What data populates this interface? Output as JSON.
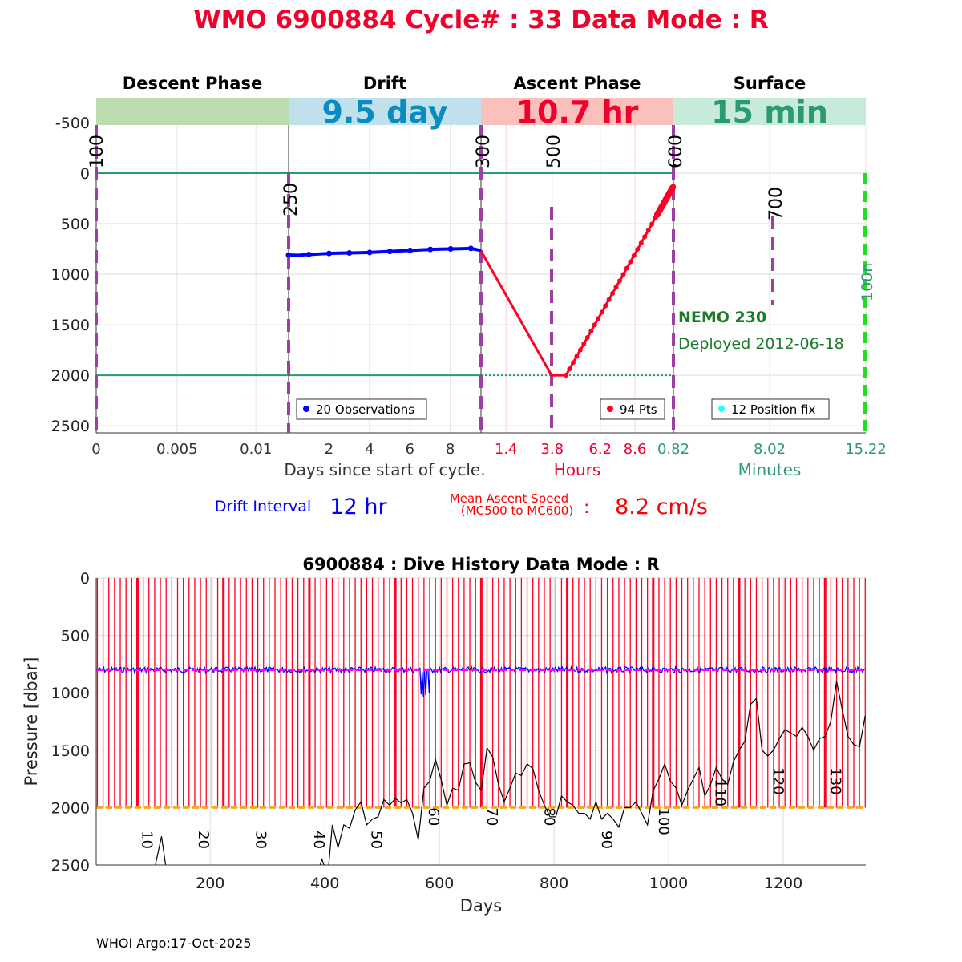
{
  "title": "WMO 6900884   Cycle# : 33   Data Mode : R",
  "chart_data": [
    {
      "type": "line",
      "phases": [
        {
          "name": "Descent Phase",
          "value": "",
          "color": "#bcdcae"
        },
        {
          "name": "Drift",
          "value": "9.5 day",
          "color": "#bfe1ec",
          "value_color": "#0a8cc0"
        },
        {
          "name": "Ascent Phase",
          "value": "10.7 hr",
          "color": "#fbbfbc",
          "value_color": "#f0002a"
        },
        {
          "name": "Surface",
          "value": "15 min",
          "color": "#c8ead9",
          "value_color": "#2a9a70"
        }
      ],
      "ylim": [
        -745,
        2570
      ],
      "yticks": [
        -500,
        0,
        500,
        1000,
        1500,
        2000,
        2500
      ],
      "ytick_labels": [
        "-500",
        "0",
        "500",
        "1000",
        "1500",
        "2000",
        "2500"
      ],
      "panel_xticks": [
        {
          "labels": [
            "0",
            "0.005",
            "0.01"
          ],
          "pos": [
            0,
            0.42,
            0.83
          ],
          "color": "#333"
        },
        {
          "labels": [
            "2",
            "4",
            "6",
            "8"
          ],
          "pos": [
            0.21,
            0.42,
            0.63,
            0.84
          ],
          "color": "#333"
        },
        {
          "labels": [
            "1.4",
            "3.8",
            "6.2",
            "8.6"
          ],
          "pos": [
            0.13,
            0.37,
            0.62,
            0.8
          ],
          "color": "#f0002a"
        },
        {
          "labels": [
            "0.82",
            "8.02",
            "15.22"
          ],
          "pos": [
            0,
            0.5,
            1
          ],
          "color": "#2a9a70"
        }
      ],
      "xlabels": [
        {
          "text": "Days since start of cycle.",
          "color": "#333"
        },
        {
          "text": "Hours",
          "color": "#f0002a"
        },
        {
          "text": "Minutes",
          "color": "#2a9a70"
        }
      ],
      "mission_codes": [
        "100",
        "250",
        "300",
        "500",
        "600",
        "700",
        "100n"
      ],
      "drift": {
        "name": "20 Observations",
        "pressure": [
          810,
          812,
          805,
          800,
          795,
          792,
          790,
          788,
          785,
          780,
          775,
          770,
          765,
          760,
          755,
          752,
          750,
          748,
          745,
          765
        ]
      },
      "ascent": {
        "name": "94 Pts",
        "descent_start": 770,
        "park_bottom": 2000,
        "surface_end": 130
      },
      "position": {
        "name": "12 Position fix"
      },
      "float_name": "NEMO 230",
      "deployed": "Deployed 2012-06-18",
      "reference_lines": [
        0,
        2000
      ]
    },
    {
      "type": "line",
      "title": "6900884 : Dive History      Data Mode : R",
      "xlabel": "Days",
      "ylabel": "Pressure [dbar]",
      "xlim": [
        1,
        1344
      ],
      "ylim": [
        0,
        2500
      ],
      "xticks": [
        200,
        400,
        600,
        800,
        1000,
        1200
      ],
      "xtick_labels": [
        "200",
        "400",
        "600",
        "800",
        "1000",
        "1200"
      ],
      "yticks": [
        0,
        500,
        1000,
        1500,
        2000,
        2500
      ],
      "ytick_labels": [
        "0",
        "500",
        "1000",
        "1500",
        "2000",
        "2500"
      ],
      "cycle_labels": [
        "10",
        "20",
        "30",
        "40",
        "50",
        "60",
        "70",
        "80",
        "90",
        "100",
        "110",
        "120",
        "130"
      ],
      "cycle_label_days": [
        73,
        172,
        272,
        373,
        473,
        573,
        675,
        775,
        875,
        975,
        1073,
        1175,
        1275
      ],
      "cycle_label_pressure": [
        2200,
        2200,
        2200,
        2200,
        2200,
        2000,
        2000,
        2000,
        2200,
        2000,
        1750,
        1650,
        1650
      ],
      "profile_interval_days": 10,
      "profile_max_pressure": 2000,
      "park_pressure": 800,
      "max_pressure": 2000,
      "bottom": [
        [
          0,
          2600
        ],
        [
          100,
          2600
        ],
        [
          115,
          2250
        ],
        [
          125,
          2600
        ],
        [
          385,
          2600
        ],
        [
          395,
          2450
        ],
        [
          405,
          2600
        ],
        [
          413,
          2150
        ],
        [
          423,
          2350
        ],
        [
          433,
          2150
        ],
        [
          443,
          2180
        ],
        [
          453,
          2020
        ],
        [
          463,
          1950
        ],
        [
          473,
          2150
        ],
        [
          483,
          2100
        ],
        [
          493,
          2080
        ],
        [
          503,
          1930
        ],
        [
          513,
          1980
        ],
        [
          523,
          1920
        ],
        [
          533,
          1960
        ],
        [
          543,
          1930
        ],
        [
          553,
          2050
        ],
        [
          563,
          2280
        ],
        [
          573,
          1830
        ],
        [
          583,
          1770
        ],
        [
          593,
          1580
        ],
        [
          603,
          1760
        ],
        [
          613,
          1980
        ],
        [
          623,
          1830
        ],
        [
          633,
          1850
        ],
        [
          643,
          1620
        ],
        [
          653,
          1610
        ],
        [
          663,
          1780
        ],
        [
          673,
          1850
        ],
        [
          683,
          1480
        ],
        [
          693,
          1560
        ],
        [
          703,
          1800
        ],
        [
          713,
          1950
        ],
        [
          723,
          1830
        ],
        [
          733,
          1700
        ],
        [
          743,
          1720
        ],
        [
          753,
          1620
        ],
        [
          763,
          1660
        ],
        [
          773,
          1850
        ],
        [
          783,
          1980
        ],
        [
          793,
          2080
        ],
        [
          803,
          2080
        ],
        [
          813,
          1900
        ],
        [
          823,
          1950
        ],
        [
          833,
          1980
        ],
        [
          843,
          2050
        ],
        [
          853,
          2050
        ],
        [
          863,
          2100
        ],
        [
          873,
          1950
        ],
        [
          883,
          2100
        ],
        [
          893,
          2050
        ],
        [
          903,
          2100
        ],
        [
          913,
          2170
        ],
        [
          923,
          2000
        ],
        [
          933,
          2000
        ],
        [
          943,
          1950
        ],
        [
          953,
          2050
        ],
        [
          963,
          2150
        ],
        [
          973,
          1850
        ],
        [
          983,
          1750
        ],
        [
          993,
          1620
        ],
        [
          1003,
          1770
        ],
        [
          1013,
          1830
        ],
        [
          1023,
          1980
        ],
        [
          1033,
          1850
        ],
        [
          1043,
          1750
        ],
        [
          1053,
          1650
        ],
        [
          1063,
          1900
        ],
        [
          1073,
          1800
        ],
        [
          1083,
          1650
        ],
        [
          1093,
          1750
        ],
        [
          1103,
          1800
        ],
        [
          1113,
          1600
        ],
        [
          1123,
          1500
        ],
        [
          1133,
          1420
        ],
        [
          1143,
          1100
        ],
        [
          1153,
          1050
        ],
        [
          1163,
          1500
        ],
        [
          1173,
          1550
        ],
        [
          1183,
          1500
        ],
        [
          1193,
          1400
        ],
        [
          1203,
          1320
        ],
        [
          1213,
          1350
        ],
        [
          1223,
          1380
        ],
        [
          1233,
          1300
        ],
        [
          1243,
          1380
        ],
        [
          1253,
          1500
        ],
        [
          1263,
          1400
        ],
        [
          1273,
          1380
        ],
        [
          1283,
          1250
        ],
        [
          1293,
          900
        ],
        [
          1303,
          1150
        ],
        [
          1313,
          1380
        ],
        [
          1323,
          1450
        ],
        [
          1333,
          1470
        ],
        [
          1343,
          1200
        ]
      ]
    }
  ],
  "drift_interval": {
    "label": "Drift Interval",
    "value": "12 hr"
  },
  "ascent_speed": {
    "label1": "Mean Ascent Speed",
    "label2": "(MC500 to MC600)",
    "sep": ":",
    "value": "8.2 cm/s"
  },
  "footer": "WHOI Argo:17-Oct-2025",
  "colors": {
    "title": "#f0002a",
    "blue": "#0000ff",
    "red": "#ff0022",
    "purple": "#9b3fa0",
    "green_ref": "#2a9a70",
    "magenta": "#ff00ff",
    "orange": "#f5a623",
    "nemo": "#1a7a2a"
  }
}
